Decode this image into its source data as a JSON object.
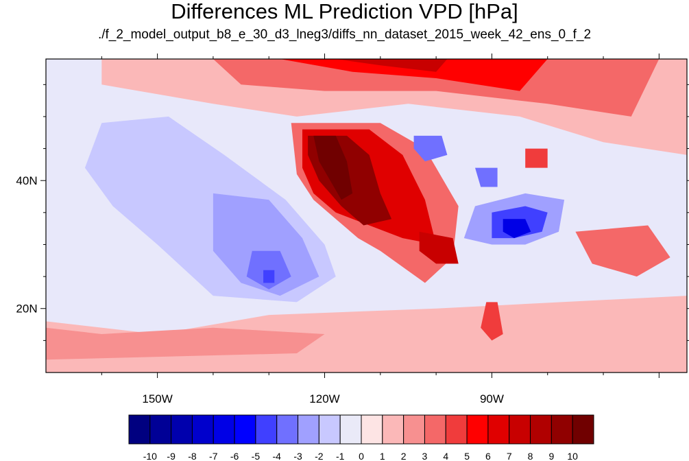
{
  "title": "Differences ML Prediction VPD [hPa]",
  "subtitle": "./f_2_model_output_b8_e_30_d3_lneg3/diffs_nn_dataset_2015_week_42_ens_0_f_2",
  "map": {
    "lon_range": [
      -170,
      -55
    ],
    "lat_range": [
      10,
      59
    ],
    "lon_ticks": [
      {
        "value": -150,
        "label": "150W"
      },
      {
        "value": -120,
        "label": "120W"
      },
      {
        "value": -90,
        "label": "90W"
      }
    ],
    "lat_ticks": [
      {
        "value": 40,
        "label": "40N"
      },
      {
        "value": 20,
        "label": "20N"
      }
    ],
    "background_color": "#e8e8fa",
    "regions": [
      {
        "name": "ocean-positive-south",
        "level": 1,
        "pts": [
          [
            -170,
            10
          ],
          [
            -55,
            10
          ],
          [
            -55,
            22
          ],
          [
            -100,
            20
          ],
          [
            -130,
            19
          ],
          [
            -150,
            16
          ],
          [
            -170,
            18
          ]
        ]
      },
      {
        "name": "ocean-pink-band-2",
        "level": 2,
        "pts": [
          [
            -170,
            12
          ],
          [
            -125,
            13
          ],
          [
            -120,
            16
          ],
          [
            -140,
            17
          ],
          [
            -160,
            16
          ],
          [
            -170,
            17
          ]
        ]
      },
      {
        "name": "pacific-negative-1",
        "level": -1,
        "pts": [
          [
            -160,
            49
          ],
          [
            -148,
            50
          ],
          [
            -138,
            44
          ],
          [
            -127,
            37
          ],
          [
            -120,
            30
          ],
          [
            -118,
            25
          ],
          [
            -125,
            21
          ],
          [
            -140,
            22
          ],
          [
            -150,
            30
          ],
          [
            -158,
            36
          ],
          [
            -163,
            42
          ]
        ]
      },
      {
        "name": "pacific-negative-2",
        "level": -2,
        "pts": [
          [
            -140,
            38
          ],
          [
            -130,
            37
          ],
          [
            -124,
            31
          ],
          [
            -121,
            25
          ],
          [
            -128,
            22
          ],
          [
            -135,
            24
          ],
          [
            -140,
            29
          ]
        ]
      },
      {
        "name": "pacific-negative-3",
        "level": -3,
        "pts": [
          [
            -133,
            29
          ],
          [
            -128,
            29
          ],
          [
            -126,
            25
          ],
          [
            -130,
            23
          ],
          [
            -134,
            25
          ]
        ]
      },
      {
        "name": "pacific-negative-4",
        "level": -4,
        "pts": [
          [
            -131,
            26
          ],
          [
            -129,
            26
          ],
          [
            -129,
            24
          ],
          [
            -131,
            24
          ]
        ]
      },
      {
        "name": "canada-positive-1",
        "level": 1,
        "pts": [
          [
            -160,
            59
          ],
          [
            -55,
            59
          ],
          [
            -55,
            44
          ],
          [
            -70,
            46
          ],
          [
            -85,
            50
          ],
          [
            -105,
            52
          ],
          [
            -125,
            50
          ],
          [
            -140,
            52
          ],
          [
            -160,
            55
          ]
        ]
      },
      {
        "name": "canada-positive-3",
        "level": 3,
        "pts": [
          [
            -140,
            59
          ],
          [
            -60,
            59
          ],
          [
            -65,
            50
          ],
          [
            -80,
            52
          ],
          [
            -100,
            54
          ],
          [
            -120,
            54
          ],
          [
            -135,
            55
          ]
        ]
      },
      {
        "name": "canada-positive-5",
        "level": 5,
        "pts": [
          [
            -128,
            59
          ],
          [
            -80,
            59
          ],
          [
            -85,
            54
          ],
          [
            -100,
            56
          ],
          [
            -115,
            57
          ]
        ]
      },
      {
        "name": "canada-positive-7",
        "level": 7,
        "pts": [
          [
            -118,
            59
          ],
          [
            -98,
            59
          ],
          [
            -100,
            57
          ],
          [
            -110,
            58
          ]
        ]
      },
      {
        "name": "west-positive-3",
        "level": 3,
        "pts": [
          [
            -126,
            49
          ],
          [
            -110,
            49
          ],
          [
            -102,
            45
          ],
          [
            -96,
            36
          ],
          [
            -97,
            28
          ],
          [
            -102,
            24
          ],
          [
            -110,
            29
          ],
          [
            -114,
            31
          ],
          [
            -118,
            34
          ],
          [
            -122,
            37
          ],
          [
            -125,
            41
          ]
        ]
      },
      {
        "name": "west-positive-6",
        "level": 6,
        "pts": [
          [
            -124,
            48
          ],
          [
            -112,
            48
          ],
          [
            -106,
            44
          ],
          [
            -102,
            37
          ],
          [
            -100,
            30
          ],
          [
            -106,
            31
          ],
          [
            -112,
            33
          ],
          [
            -118,
            35
          ],
          [
            -122,
            38
          ],
          [
            -124,
            42
          ]
        ]
      },
      {
        "name": "west-positive-9",
        "level": 9,
        "pts": [
          [
            -123,
            47
          ],
          [
            -116,
            47
          ],
          [
            -112,
            44
          ],
          [
            -110,
            38
          ],
          [
            -108,
            34
          ],
          [
            -113,
            33
          ],
          [
            -117,
            36
          ],
          [
            -121,
            40
          ],
          [
            -123,
            44
          ]
        ]
      },
      {
        "name": "west-positive-10",
        "level": 10,
        "pts": [
          [
            -122,
            47
          ],
          [
            -118,
            47
          ],
          [
            -116,
            43
          ],
          [
            -115,
            38
          ],
          [
            -117,
            37
          ],
          [
            -119,
            40
          ],
          [
            -121,
            43
          ]
        ]
      },
      {
        "name": "texas-positive-7",
        "level": 7,
        "pts": [
          [
            -103,
            32
          ],
          [
            -97,
            31
          ],
          [
            -96,
            27
          ],
          [
            -100,
            27
          ],
          [
            -103,
            29
          ]
        ]
      },
      {
        "name": "southeast-negative-2",
        "level": -2,
        "pts": [
          [
            -93,
            36
          ],
          [
            -84,
            38
          ],
          [
            -77,
            37
          ],
          [
            -78,
            32
          ],
          [
            -84,
            30
          ],
          [
            -90,
            30
          ],
          [
            -95,
            31
          ]
        ]
      },
      {
        "name": "southeast-negative-4",
        "level": -4,
        "pts": [
          [
            -90,
            35
          ],
          [
            -84,
            36
          ],
          [
            -80,
            35
          ],
          [
            -81,
            32
          ],
          [
            -86,
            31
          ],
          [
            -90,
            31
          ]
        ]
      },
      {
        "name": "southeast-negative-6",
        "level": -6,
        "pts": [
          [
            -88,
            34
          ],
          [
            -84,
            34
          ],
          [
            -83,
            32
          ],
          [
            -86,
            31
          ],
          [
            -88,
            32
          ]
        ]
      },
      {
        "name": "dakota-negative-3",
        "level": -3,
        "pts": [
          [
            -104,
            47
          ],
          [
            -99,
            47
          ],
          [
            -98,
            44
          ],
          [
            -102,
            43
          ],
          [
            -104,
            45
          ]
        ]
      },
      {
        "name": "greatlakes-negative-3",
        "level": -3,
        "pts": [
          [
            -93,
            42
          ],
          [
            -89,
            42
          ],
          [
            -89,
            39
          ],
          [
            -92,
            39
          ]
        ]
      },
      {
        "name": "atlantic-positive-3",
        "level": 3,
        "pts": [
          [
            -75,
            32
          ],
          [
            -62,
            33
          ],
          [
            -58,
            28
          ],
          [
            -64,
            25
          ],
          [
            -72,
            27
          ]
        ]
      },
      {
        "name": "gulf-positive-4",
        "level": 4,
        "pts": [
          [
            -91,
            21
          ],
          [
            -89,
            21
          ],
          [
            -88,
            16
          ],
          [
            -90,
            15
          ],
          [
            -92,
            17
          ]
        ]
      },
      {
        "name": "east-canada-positive-4",
        "level": 4,
        "pts": [
          [
            -84,
            45
          ],
          [
            -80,
            45
          ],
          [
            -80,
            42
          ],
          [
            -84,
            42
          ]
        ]
      }
    ]
  },
  "legend": {
    "labels": [
      "-10",
      "-9",
      "-8",
      "-7",
      "-6",
      "-5",
      "-4",
      "-3",
      "-2",
      "-1",
      "0",
      "1",
      "2",
      "3",
      "4",
      "5",
      "6",
      "7",
      "8",
      "9",
      "10"
    ],
    "colors": [
      "#000080",
      "#000096",
      "#0000ad",
      "#0000cc",
      "#0000e6",
      "#0000ff",
      "#4040ff",
      "#7070ff",
      "#a0a0ff",
      "#c8c8ff",
      "#eaeaf8",
      "#fde4e4",
      "#fbb8b8",
      "#f79090",
      "#f46868",
      "#f03c3c",
      "#ff0000",
      "#e00000",
      "#c80000",
      "#b00000",
      "#900000",
      "#700000"
    ]
  }
}
